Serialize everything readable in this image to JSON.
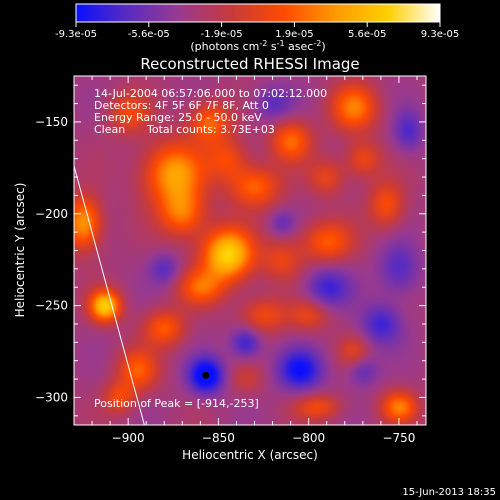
{
  "colorbar": {
    "ticks": [
      "-9.3e-05",
      "-5.6e-05",
      "-1.9e-05",
      "1.9e-05",
      "5.6e-05",
      "9.3e-05"
    ],
    "units_text": "(photons cm",
    "units_sup1": "-2",
    "units_mid": " s",
    "units_sup2": "-1",
    "units_tail": " asec",
    "units_sup3": "-2",
    "units_close": ")",
    "stops": [
      "#0a10ff",
      "#5a2cc0",
      "#9a3a8e",
      "#c83a3a",
      "#ff4a00",
      "#ff9a00",
      "#ffd000",
      "#ffffff"
    ]
  },
  "chart_data": {
    "type": "heatmap",
    "title": "Reconstructed RHESSI Image",
    "xlabel": "Heliocentric X (arcsec)",
    "ylabel": "Heliocentric Y (arcsec)",
    "xlim": [
      -930,
      -735
    ],
    "ylim": [
      -315,
      -125
    ],
    "x_ticks": [
      -900,
      -850,
      -800,
      -750
    ],
    "y_ticks": [
      -150,
      -200,
      -250,
      -300
    ],
    "clim": [
      -9.3e-05,
      9.3e-05
    ],
    "annotations": [
      "14-Jul-2004 06:57:06.000 to 07:02:12.000",
      "Detectors: 4F 5F 6F 7F 8F, Att 0",
      "Energy Range: 25.0 - 50.0 keV",
      "Clean",
      "Total counts: 3.73E+03"
    ],
    "peak_label": "Position of Peak = [-914,-253]",
    "peak": [
      -914,
      -253
    ],
    "min_marker": [
      -857,
      -288
    ],
    "limb_line": [
      [
        -930,
        -174
      ],
      [
        -891,
        -315
      ]
    ],
    "sources": [
      {
        "x": -845,
        "y": -222,
        "a": 1.0,
        "sx": 10,
        "sy": 10
      },
      {
        "x": -875,
        "y": -178,
        "a": 0.75,
        "sx": 12,
        "sy": 12
      },
      {
        "x": -830,
        "y": -185,
        "a": 0.55,
        "sx": 10,
        "sy": 8
      },
      {
        "x": -855,
        "y": -150,
        "a": 0.55,
        "sx": 8,
        "sy": 8
      },
      {
        "x": -810,
        "y": -160,
        "a": 0.55,
        "sx": 8,
        "sy": 8
      },
      {
        "x": -775,
        "y": -142,
        "a": 0.6,
        "sx": 9,
        "sy": 9
      },
      {
        "x": -770,
        "y": -170,
        "a": 0.4,
        "sx": 7,
        "sy": 7
      },
      {
        "x": -790,
        "y": -215,
        "a": 0.5,
        "sx": 10,
        "sy": 8
      },
      {
        "x": -757,
        "y": -195,
        "a": 0.45,
        "sx": 7,
        "sy": 9
      },
      {
        "x": -900,
        "y": -145,
        "a": 0.4,
        "sx": 8,
        "sy": 8
      },
      {
        "x": -925,
        "y": -205,
        "a": 0.75,
        "sx": 7,
        "sy": 10
      },
      {
        "x": -913,
        "y": -250,
        "a": 0.95,
        "sx": 6,
        "sy": 6
      },
      {
        "x": -880,
        "y": -262,
        "a": 0.5,
        "sx": 8,
        "sy": 7
      },
      {
        "x": -895,
        "y": -285,
        "a": 0.5,
        "sx": 8,
        "sy": 8
      },
      {
        "x": -825,
        "y": -255,
        "a": 0.4,
        "sx": 9,
        "sy": 7
      },
      {
        "x": -800,
        "y": -255,
        "a": 0.35,
        "sx": 8,
        "sy": 6
      },
      {
        "x": -790,
        "y": -180,
        "a": 0.35,
        "sx": 7,
        "sy": 7
      },
      {
        "x": -845,
        "y": -170,
        "a": 0.4,
        "sx": 8,
        "sy": 8
      },
      {
        "x": -905,
        "y": -300,
        "a": 0.4,
        "sx": 6,
        "sy": 6
      },
      {
        "x": -795,
        "y": -305,
        "a": 0.4,
        "sx": 9,
        "sy": 5
      },
      {
        "x": -750,
        "y": -305,
        "a": 0.6,
        "sx": 7,
        "sy": 6
      },
      {
        "x": -775,
        "y": -275,
        "a": 0.3,
        "sx": 6,
        "sy": 6
      },
      {
        "x": -835,
        "y": -290,
        "a": 0.2,
        "sx": 7,
        "sy": 6
      },
      {
        "x": -860,
        "y": -240,
        "a": 0.5,
        "sx": 9,
        "sy": 7
      },
      {
        "x": -870,
        "y": -200,
        "a": 0.55,
        "sx": 9,
        "sy": 9
      },
      {
        "x": -815,
        "y": -225,
        "a": 0.35,
        "sx": 8,
        "sy": 8
      },
      {
        "x": -857,
        "y": -288,
        "a": -0.7,
        "sx": 7,
        "sy": 7
      },
      {
        "x": -805,
        "y": -285,
        "a": -0.55,
        "sx": 9,
        "sy": 8
      },
      {
        "x": -790,
        "y": -240,
        "a": -0.4,
        "sx": 9,
        "sy": 8
      },
      {
        "x": -750,
        "y": -230,
        "a": -0.35,
        "sx": 8,
        "sy": 10
      },
      {
        "x": -760,
        "y": -260,
        "a": -0.4,
        "sx": 8,
        "sy": 8
      },
      {
        "x": -820,
        "y": -140,
        "a": -0.3,
        "sx": 8,
        "sy": 7
      },
      {
        "x": -745,
        "y": -155,
        "a": -0.35,
        "sx": 6,
        "sy": 8
      },
      {
        "x": -880,
        "y": -230,
        "a": -0.3,
        "sx": 6,
        "sy": 6
      },
      {
        "x": -835,
        "y": -270,
        "a": -0.45,
        "sx": 6,
        "sy": 6
      },
      {
        "x": -815,
        "y": -205,
        "a": -0.25,
        "sx": 5,
        "sy": 5
      },
      {
        "x": -770,
        "y": -285,
        "a": -0.3,
        "sx": 6,
        "sy": 6
      }
    ]
  },
  "footer": {
    "timestamp": "15-Jun-2013 18:35"
  }
}
